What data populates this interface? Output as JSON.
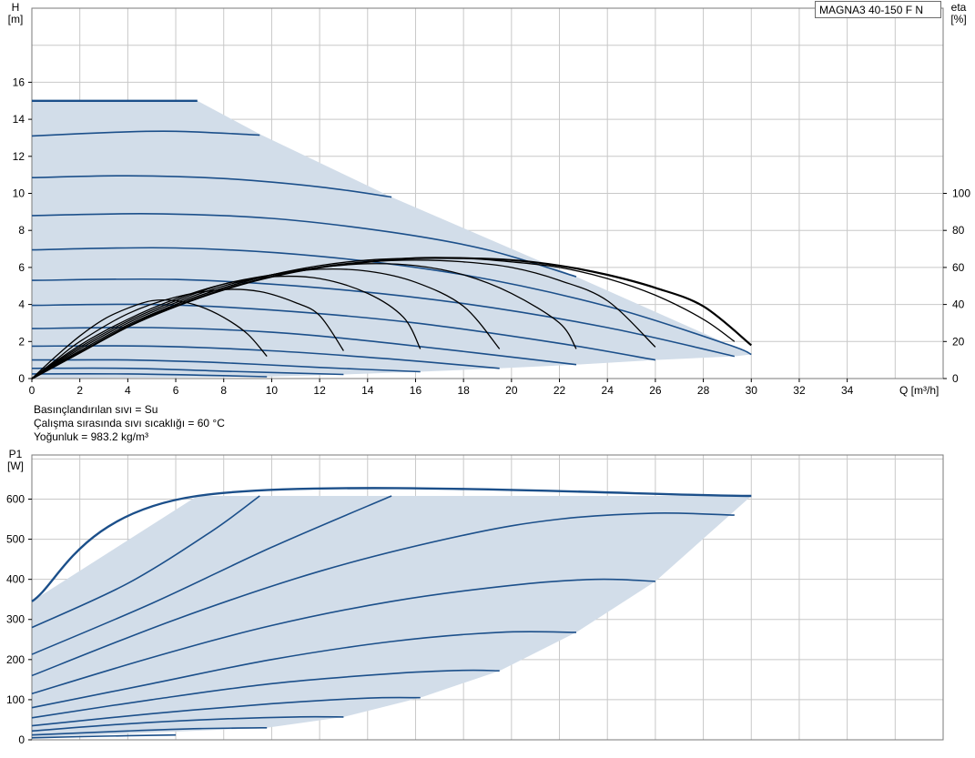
{
  "model": "MAGNA3 40-150 F N",
  "conditions": [
    "Basınçlandırılan sıvı = Su",
    "Çalışma sırasında sıvı sıcaklığı = 60 °C",
    "Yoğunluk = 983.2 kg/m³"
  ],
  "colors": {
    "curve": "#1b4f8a",
    "envelope": "#1b4f8a",
    "fill": "#d2dde9",
    "efficiency": "#000000",
    "grid": "#c8c8c8"
  },
  "chart_data": [
    {
      "type": "line",
      "panel": "head",
      "ylabel_line1": "H",
      "ylabel_line2": "[m]",
      "y2label_line1": "eta",
      "y2label_line2": "[%]",
      "xlabel": "Q [m³/h]",
      "xlim": [
        0,
        38
      ],
      "ylim": [
        0,
        20
      ],
      "y2lim": [
        0,
        200
      ],
      "x_ticks": [
        0,
        2,
        4,
        6,
        8,
        10,
        12,
        14,
        16,
        18,
        20,
        22,
        24,
        26,
        28,
        30,
        32,
        34
      ],
      "y_ticks": [
        0,
        2,
        4,
        6,
        8,
        10,
        12,
        14,
        16
      ],
      "y2_ticks": [
        0,
        20,
        40,
        60,
        80,
        100
      ],
      "grid": true,
      "envelope": [
        [
          0,
          15.0
        ],
        [
          6.9,
          15.0
        ],
        [
          9.5,
          13.2
        ],
        [
          15.0,
          9.8
        ],
        [
          22.7,
          5.5
        ],
        [
          30.0,
          1.3
        ],
        [
          29.3,
          1.2
        ],
        [
          26.0,
          1.0
        ],
        [
          22.7,
          0.75
        ],
        [
          19.5,
          0.55
        ],
        [
          16.2,
          0.37
        ],
        [
          13.0,
          0.22
        ],
        [
          9.8,
          0.1
        ],
        [
          0,
          0
        ]
      ],
      "series": [
        {
          "values": [
            [
              0,
              15.0
            ],
            [
              6.9,
              15.0
            ]
          ]
        },
        {
          "values": [
            [
              0,
              13.1
            ],
            [
              3.5,
              13.3
            ],
            [
              6,
              13.35
            ],
            [
              9.5,
              13.15
            ]
          ]
        },
        {
          "values": [
            [
              0,
              10.85
            ],
            [
              4,
              10.95
            ],
            [
              8,
              10.8
            ],
            [
              12,
              10.35
            ],
            [
              15.0,
              9.8
            ]
          ]
        },
        {
          "values": [
            [
              0,
              8.8
            ],
            [
              5,
              8.9
            ],
            [
              10,
              8.65
            ],
            [
              15,
              7.9
            ],
            [
              19,
              6.95
            ],
            [
              22.7,
              5.5
            ]
          ]
        },
        {
          "values": [
            [
              0,
              6.95
            ],
            [
              6,
              7.05
            ],
            [
              12,
              6.6
            ],
            [
              18,
              5.6
            ],
            [
              24,
              3.9
            ],
            [
              29,
              1.85
            ],
            [
              30.0,
              1.3
            ]
          ]
        },
        {
          "values": [
            [
              0,
              5.3
            ],
            [
              6,
              5.35
            ],
            [
              12,
              4.9
            ],
            [
              18,
              4.05
            ],
            [
              24,
              2.75
            ],
            [
              29.3,
              1.2
            ]
          ]
        },
        {
          "values": [
            [
              0,
              3.95
            ],
            [
              5,
              4.0
            ],
            [
              10,
              3.7
            ],
            [
              16,
              3.0
            ],
            [
              22,
              1.9
            ],
            [
              26.0,
              1.0
            ]
          ]
        },
        {
          "values": [
            [
              0,
              2.7
            ],
            [
              5,
              2.75
            ],
            [
              10,
              2.5
            ],
            [
              15,
              1.9
            ],
            [
              22.7,
              0.75
            ]
          ]
        },
        {
          "values": [
            [
              0,
              1.75
            ],
            [
              5,
              1.75
            ],
            [
              10,
              1.5
            ],
            [
              15,
              1.05
            ],
            [
              19.5,
              0.55
            ]
          ]
        },
        {
          "values": [
            [
              0,
              1.0
            ],
            [
              4,
              1.0
            ],
            [
              8,
              0.85
            ],
            [
              12,
              0.6
            ],
            [
              16.2,
              0.37
            ]
          ]
        },
        {
          "values": [
            [
              0,
              0.55
            ],
            [
              4,
              0.55
            ],
            [
              8,
              0.4
            ],
            [
              13.0,
              0.22
            ]
          ]
        },
        {
          "values": [
            [
              0,
              0.25
            ],
            [
              4,
              0.25
            ],
            [
              7,
              0.18
            ],
            [
              9.8,
              0.1
            ]
          ]
        }
      ],
      "efficiency_series": [
        {
          "values": [
            [
              0,
              0
            ],
            [
              1,
              12
            ],
            [
              2,
              23
            ],
            [
              3,
              32
            ],
            [
              4,
              38
            ],
            [
              5,
              42
            ],
            [
              6,
              42
            ],
            [
              7,
              39
            ],
            [
              8,
              33
            ],
            [
              9,
              24
            ],
            [
              9.8,
              12
            ]
          ]
        },
        {
          "values": [
            [
              0,
              0
            ],
            [
              1,
              10
            ],
            [
              2,
              20
            ],
            [
              4,
              35
            ],
            [
              6,
              44
            ],
            [
              8,
              48
            ],
            [
              9.5,
              47
            ],
            [
              11,
              41
            ],
            [
              12,
              34
            ],
            [
              13.0,
              15
            ]
          ]
        },
        {
          "values": [
            [
              0,
              0
            ],
            [
              2,
              18
            ],
            [
              4,
              32
            ],
            [
              6,
              43
            ],
            [
              8,
              51
            ],
            [
              10,
              55
            ],
            [
              12,
              54
            ],
            [
              14,
              46
            ],
            [
              15.5,
              33
            ],
            [
              16.2,
              16
            ]
          ]
        },
        {
          "values": [
            [
              0,
              0
            ],
            [
              2,
              17
            ],
            [
              4,
              31
            ],
            [
              6,
              42
            ],
            [
              8,
              51
            ],
            [
              10,
              56
            ],
            [
              12,
              59
            ],
            [
              14,
              58
            ],
            [
              16,
              52
            ],
            [
              18,
              39
            ],
            [
              19.5,
              16
            ]
          ]
        },
        {
          "values": [
            [
              0,
              0
            ],
            [
              2,
              16
            ],
            [
              4,
              30
            ],
            [
              6,
              41
            ],
            [
              8,
              50
            ],
            [
              10,
              56
            ],
            [
              12,
              60
            ],
            [
              14,
              62
            ],
            [
              16,
              61
            ],
            [
              18,
              56
            ],
            [
              20,
              46
            ],
            [
              22,
              30
            ],
            [
              22.7,
              16
            ]
          ]
        },
        {
          "values": [
            [
              0,
              0
            ],
            [
              2,
              15
            ],
            [
              4,
              29
            ],
            [
              6,
              40
            ],
            [
              8,
              49
            ],
            [
              10,
              56
            ],
            [
              12,
              60
            ],
            [
              14,
              63
            ],
            [
              16,
              64
            ],
            [
              18,
              63
            ],
            [
              20,
              60
            ],
            [
              22,
              53
            ],
            [
              24,
              42
            ],
            [
              26.0,
              17
            ]
          ]
        },
        {
          "values": [
            [
              0,
              0
            ],
            [
              2,
              14
            ],
            [
              4,
              28
            ],
            [
              6,
              40
            ],
            [
              8,
              49
            ],
            [
              10,
              56
            ],
            [
              12,
              61
            ],
            [
              14,
              64
            ],
            [
              16,
              65
            ],
            [
              18,
              65
            ],
            [
              20,
              63
            ],
            [
              22,
              60
            ],
            [
              24,
              54
            ],
            [
              26,
              45
            ],
            [
              28,
              32
            ],
            [
              29.3,
              20
            ]
          ]
        },
        {
          "values": [
            [
              0,
              0
            ],
            [
              2,
              14
            ],
            [
              4,
              28
            ],
            [
              6,
              39
            ],
            [
              8,
              48
            ],
            [
              10,
              55
            ],
            [
              12,
              60
            ],
            [
              14,
              63
            ],
            [
              16,
              65
            ],
            [
              18,
              65
            ],
            [
              20,
              64
            ],
            [
              22,
              61
            ],
            [
              24,
              56
            ],
            [
              26,
              49
            ],
            [
              28,
              39
            ],
            [
              30.0,
              18
            ]
          ]
        }
      ]
    },
    {
      "type": "line",
      "panel": "power",
      "ylabel_line1": "P1",
      "ylabel_line2": "[W]",
      "xlim": [
        0,
        38
      ],
      "ylim": [
        0,
        710
      ],
      "y_ticks": [
        0,
        100,
        200,
        300,
        400,
        500,
        600
      ],
      "grid": true,
      "envelope": [
        [
          0,
          345
        ],
        [
          6.9,
          608
        ],
        [
          30.0,
          608
        ],
        [
          26.0,
          395
        ],
        [
          22.7,
          268
        ],
        [
          19.5,
          172
        ],
        [
          16.2,
          105
        ],
        [
          13.0,
          57
        ],
        [
          9.8,
          30
        ],
        [
          0,
          5
        ]
      ],
      "series": [
        {
          "values": [
            [
              0,
              345
            ],
            [
              6.9,
              608
            ],
            [
              30.0,
              608
            ]
          ]
        },
        {
          "values": [
            [
              0,
              280
            ],
            [
              4,
              390
            ],
            [
              7.5,
              520
            ],
            [
              9.5,
              608
            ]
          ]
        },
        {
          "values": [
            [
              0,
              213
            ],
            [
              5,
              340
            ],
            [
              10,
              480
            ],
            [
              15.0,
              608
            ]
          ]
        },
        {
          "values": [
            [
              0,
              160
            ],
            [
              6,
              300
            ],
            [
              12,
              420
            ],
            [
              18,
              510
            ],
            [
              22,
              550
            ],
            [
              26,
              565
            ],
            [
              29.3,
              560
            ]
          ]
        },
        {
          "values": [
            [
              0,
              115
            ],
            [
              5,
              205
            ],
            [
              10,
              285
            ],
            [
              15,
              345
            ],
            [
              20,
              385
            ],
            [
              23.5,
              400
            ],
            [
              26.0,
              395
            ]
          ]
        },
        {
          "values": [
            [
              0,
              80
            ],
            [
              5,
              140
            ],
            [
              10,
              200
            ],
            [
              15,
              245
            ],
            [
              19.5,
              268
            ],
            [
              22.7,
              268
            ]
          ]
        },
        {
          "values": [
            [
              0,
              55
            ],
            [
              5,
              100
            ],
            [
              10,
              140
            ],
            [
              15,
              165
            ],
            [
              18,
              173
            ],
            [
              19.5,
              172
            ]
          ]
        },
        {
          "values": [
            [
              0,
              35
            ],
            [
              5,
              65
            ],
            [
              10,
              90
            ],
            [
              14,
              104
            ],
            [
              16.2,
              105
            ]
          ]
        },
        {
          "values": [
            [
              0,
              22
            ],
            [
              4,
              40
            ],
            [
              8,
              52
            ],
            [
              11,
              57
            ],
            [
              13.0,
              57
            ]
          ]
        },
        {
          "values": [
            [
              0,
              12
            ],
            [
              4,
              22
            ],
            [
              7,
              28
            ],
            [
              9.8,
              30
            ]
          ]
        },
        {
          "values": [
            [
              0,
              5
            ],
            [
              3,
              9
            ],
            [
              6,
              12
            ]
          ]
        }
      ]
    }
  ]
}
